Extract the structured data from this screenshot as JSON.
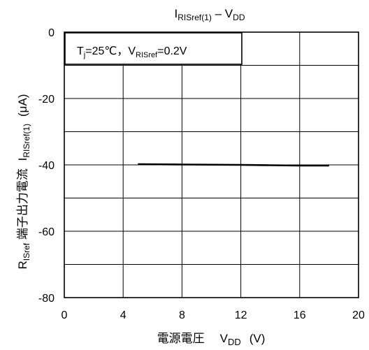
{
  "chart_data": {
    "type": "line",
    "title": {
      "main": "I",
      "sub": "RISref(1)",
      "dash": " – V",
      "sub2": "DD"
    },
    "ylabel": {
      "main": "R",
      "sub": "ISref",
      "jp": " 端子出力電流 ",
      "cur": "I",
      "cur_sub": "RISref(1)",
      "unit": "(μA)"
    },
    "xlabel": {
      "jp": "電源電圧",
      "v": "V",
      "v_sub": "DD",
      "unit": "(V)"
    },
    "annotation": {
      "t": "T",
      "t_sub": "j",
      "t_rest": "=25℃，V",
      "v_sub": "RISref",
      "v_rest": "=0.2V"
    },
    "xlim": [
      0,
      20
    ],
    "ylim": [
      -80,
      0
    ],
    "xticks": [
      0,
      4,
      8,
      12,
      16,
      20
    ],
    "yticks": [
      0,
      -20,
      -40,
      -60,
      -80
    ],
    "x_grid": [
      4,
      8,
      12,
      16
    ],
    "y_grid": [
      -10,
      -20,
      -30,
      -40,
      -50,
      -60,
      -70
    ],
    "grid": true,
    "series": [
      {
        "x": [
          5,
          8,
          12,
          14,
          16,
          18
        ],
        "y": [
          -39.8,
          -39.9,
          -40.0,
          -40.1,
          -40.2,
          -40.2
        ]
      }
    ]
  }
}
